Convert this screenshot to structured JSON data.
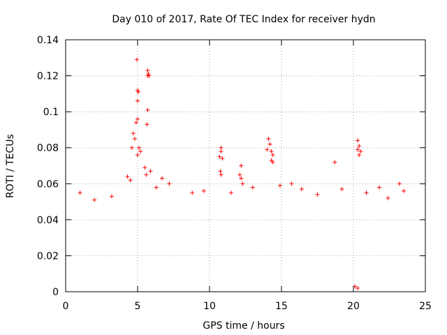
{
  "chart_data": {
    "type": "scatter",
    "title": "Day 010 of 2017, Rate Of TEC Index for receiver hydn",
    "xlabel": "GPS time / hours",
    "ylabel": "ROTI / TECUs",
    "xlim": [
      0,
      25
    ],
    "ylim": [
      0,
      0.14
    ],
    "xticks": [
      0,
      5,
      10,
      15,
      20,
      25
    ],
    "xtick_labels": [
      "0",
      "5",
      "10",
      "15",
      "20",
      "25"
    ],
    "yticks": [
      0,
      0.02,
      0.04,
      0.06,
      0.08,
      0.1,
      0.12,
      0.14
    ],
    "ytick_labels": [
      "0",
      "0.02",
      "0.04",
      "0.06",
      "0.08",
      "0.1",
      "0.12",
      "0.14"
    ],
    "grid": true,
    "marker": "+",
    "color": "#ff0000",
    "series": [
      {
        "name": "ROTI",
        "points": [
          [
            4.95,
            0.129
          ],
          [
            5.0,
            0.112
          ],
          [
            5.05,
            0.111
          ],
          [
            5.0,
            0.106
          ],
          [
            5.0,
            0.096
          ],
          [
            4.9,
            0.094
          ],
          [
            5.7,
            0.123
          ],
          [
            5.75,
            0.121
          ],
          [
            5.7,
            0.12
          ],
          [
            5.8,
            0.12
          ],
          [
            5.7,
            0.101
          ],
          [
            5.65,
            0.093
          ],
          [
            4.7,
            0.088
          ],
          [
            4.8,
            0.085
          ],
          [
            4.6,
            0.08
          ],
          [
            5.1,
            0.08
          ],
          [
            5.2,
            0.078
          ],
          [
            5.0,
            0.076
          ],
          [
            4.3,
            0.064
          ],
          [
            4.5,
            0.062
          ],
          [
            5.5,
            0.069
          ],
          [
            5.6,
            0.065
          ],
          [
            5.9,
            0.067
          ],
          [
            6.7,
            0.063
          ],
          [
            10.8,
            0.08
          ],
          [
            10.8,
            0.078
          ],
          [
            10.7,
            0.075
          ],
          [
            10.9,
            0.074
          ],
          [
            10.75,
            0.067
          ],
          [
            10.8,
            0.065
          ],
          [
            12.2,
            0.07
          ],
          [
            12.1,
            0.065
          ],
          [
            12.2,
            0.063
          ],
          [
            12.3,
            0.06
          ],
          [
            14.1,
            0.085
          ],
          [
            14.2,
            0.082
          ],
          [
            14.0,
            0.079
          ],
          [
            14.3,
            0.078
          ],
          [
            14.4,
            0.076
          ],
          [
            14.3,
            0.073
          ],
          [
            14.4,
            0.072
          ],
          [
            18.7,
            0.072
          ],
          [
            20.3,
            0.084
          ],
          [
            20.4,
            0.081
          ],
          [
            20.3,
            0.079
          ],
          [
            20.5,
            0.078
          ],
          [
            20.4,
            0.076
          ],
          [
            21.8,
            0.058
          ],
          [
            23.2,
            0.06
          ],
          [
            22.4,
            0.052
          ],
          [
            1.0,
            0.055
          ],
          [
            2.0,
            0.051
          ],
          [
            3.2,
            0.053
          ],
          [
            6.3,
            0.058
          ],
          [
            7.2,
            0.06
          ],
          [
            8.8,
            0.055
          ],
          [
            9.6,
            0.056
          ],
          [
            11.5,
            0.055
          ],
          [
            13.0,
            0.058
          ],
          [
            14.9,
            0.059
          ],
          [
            15.7,
            0.06
          ],
          [
            16.4,
            0.057
          ],
          [
            17.5,
            0.054
          ],
          [
            19.2,
            0.057
          ],
          [
            20.9,
            0.055
          ],
          [
            23.5,
            0.056
          ],
          [
            20.1,
            0.003
          ],
          [
            20.3,
            0.002
          ]
        ]
      }
    ]
  }
}
